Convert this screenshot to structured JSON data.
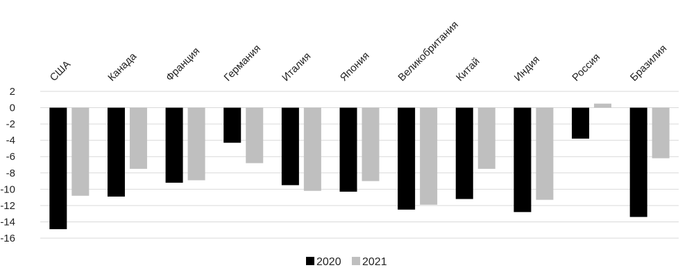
{
  "chart_data": {
    "type": "bar",
    "categories": [
      "США",
      "Канада",
      "Франция",
      "Германия",
      "Италия",
      "Япония",
      "Великобритания",
      "Китай",
      "Индия",
      "Россия",
      "Бразилия"
    ],
    "series": [
      {
        "name": "2020",
        "values": [
          -14.9,
          -10.9,
          -9.2,
          -4.3,
          -9.5,
          -10.3,
          -12.5,
          -11.2,
          -12.8,
          -3.8,
          -13.4
        ],
        "color": "#000000"
      },
      {
        "name": "2021",
        "values": [
          -10.8,
          -7.5,
          -8.9,
          -6.8,
          -10.2,
          -9.0,
          -11.9,
          -7.5,
          -11.3,
          0.5,
          -6.2
        ],
        "color": "#bfbfbf"
      }
    ],
    "yticks": [
      "2",
      "0",
      "-2",
      "-4",
      "-6",
      "-8",
      "-10",
      "-12",
      "-14",
      "-16"
    ],
    "ylim": [
      -16,
      2
    ],
    "grid": true,
    "legend_position": "bottom",
    "title": "",
    "xlabel": "",
    "ylabel": ""
  }
}
